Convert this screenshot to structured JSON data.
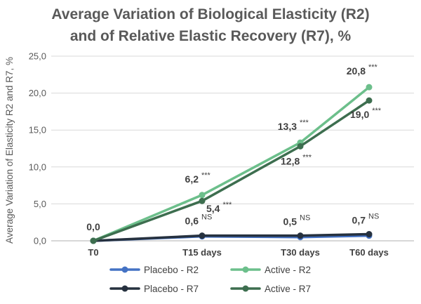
{
  "chart_data": {
    "type": "line",
    "title": [
      "Average Variation of Biological Elasticity (R2)",
      "and of Relative Elastic Recovery (R7), %"
    ],
    "ylabel": "Average Variation of Elasticity R2 and R7, %",
    "xlabel": "",
    "ylim": [
      0,
      25
    ],
    "yticks": [
      0,
      5,
      10,
      15,
      20,
      25
    ],
    "ytick_labels": [
      "0,0",
      "5,0",
      "10,0",
      "15,0",
      "20,0",
      "25,0"
    ],
    "categories": [
      "T0",
      "T15 days",
      "T30 days",
      "T60 days"
    ],
    "series": [
      {
        "name": "Placebo - R2",
        "values": [
          0,
          0.6,
          0.5,
          0.7
        ],
        "color": "#4472c4"
      },
      {
        "name": "Placebo - R7",
        "values": [
          0,
          0.7,
          0.7,
          0.9
        ],
        "color": "#26313f"
      },
      {
        "name": "Active - R2",
        "values": [
          0,
          6.2,
          13.3,
          20.8
        ],
        "color": "#6cbf8b"
      },
      {
        "name": "Active - R7",
        "values": [
          0,
          5.4,
          12.8,
          19.0
        ],
        "color": "#3d6e4f"
      }
    ],
    "legend": [
      "Placebo - R2",
      "Active - R2",
      "Placebo - R7",
      "Active - R7"
    ],
    "legend_position": "bottom",
    "annotations": [
      {
        "category": "T0",
        "value": 0,
        "text": "0,0",
        "sig": ""
      },
      {
        "category": "T15 days",
        "value": 6.2,
        "text": "6,2",
        "sig": "***"
      },
      {
        "category": "T15 days",
        "value": 5.4,
        "text": "5,4",
        "sig": "***"
      },
      {
        "category": "T15 days",
        "value": 0.6,
        "text": "0,6",
        "sig": "NS"
      },
      {
        "category": "T30 days",
        "value": 13.3,
        "text": "13,3",
        "sig": "***"
      },
      {
        "category": "T30 days",
        "value": 12.8,
        "text": "12,8",
        "sig": "***"
      },
      {
        "category": "T30 days",
        "value": 0.5,
        "text": "0,5",
        "sig": "NS"
      },
      {
        "category": "T60 days",
        "value": 20.8,
        "text": "20,8",
        "sig": "***"
      },
      {
        "category": "T60 days",
        "value": 19.0,
        "text": "19,0",
        "sig": "***"
      },
      {
        "category": "T60 days",
        "value": 0.7,
        "text": "0,7",
        "sig": "NS"
      }
    ],
    "grid": true
  }
}
